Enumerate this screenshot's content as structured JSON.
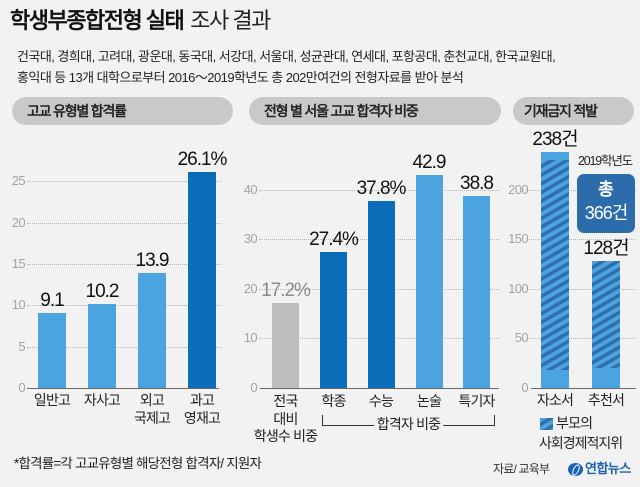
{
  "header": {
    "title_bold": "학생부종합전형 실태",
    "title_regular": "조사 결과",
    "subtitle_line1": "건국대, 경희대, 고려대, 광운대, 동국대, 서강대, 서울대, 성균관대, 연세대, 포항공대, 춘천교대, 한국교원대,",
    "subtitle_line2": "홍익대 등 13개 대학으로부터 2016～2019학년도 총 202만여건의 전형자료를 받아 분석"
  },
  "colors": {
    "background": "#f2f2f2",
    "pill": "#c9c9c9",
    "light_blue": "#4ba3df",
    "dark_blue": "#0b6cb8",
    "gray_bar": "#bdbdbf",
    "hatch_stripe": "#2f6fae",
    "total_box": "#2d6cab",
    "logo_blue": "#1b62b5"
  },
  "chart_data": [
    {
      "type": "bar",
      "title": "고교 유형별 합격률",
      "categories": [
        "일반고",
        "자사고",
        "외고\n국제고",
        "과고\n영재고"
      ],
      "values": [
        9.1,
        10.2,
        13.9,
        26.1
      ],
      "value_labels": [
        "9.1",
        "10.2",
        "13.9",
        "26.1%"
      ],
      "bar_colors": [
        "#4ba3df",
        "#4ba3df",
        "#4ba3df",
        "#0b6cb8"
      ],
      "ylim": [
        0,
        30
      ],
      "yticks": [
        0,
        5,
        10,
        15,
        20,
        25
      ],
      "grid": true
    },
    {
      "type": "bar",
      "title": "전형 별 서울 고교 합격자 비중",
      "categories": [
        "전국\n대비\n학생수 비중",
        "학종",
        "수능",
        "논술",
        "특기자"
      ],
      "values": [
        17.2,
        27.4,
        37.8,
        42.9,
        38.8
      ],
      "value_labels": [
        "17.2%",
        "27.4%",
        "37.8%",
        "42.9",
        "38.8"
      ],
      "label_colors": [
        "#8c8c8c",
        "#111111",
        "#111111",
        "#111111",
        "#111111"
      ],
      "bar_colors": [
        "#bdbdbf",
        "#0b6cb8",
        "#0b6cb8",
        "#4ba3df",
        "#4ba3df"
      ],
      "ylim": [
        0,
        50
      ],
      "yticks": [
        0,
        10,
        20,
        30,
        40
      ],
      "group_bracket": {
        "label": "합격자 비중"
      },
      "grid": true
    },
    {
      "type": "bar",
      "title": "기재금지 적발",
      "categories": [
        "자소서",
        "추천서"
      ],
      "values": [
        238,
        128
      ],
      "value_labels": [
        "238건",
        "128건"
      ],
      "bar_colors": [
        "#4ba3df",
        "#4ba3df"
      ],
      "hatch_ranges": [
        [
          18,
          230
        ],
        [
          20,
          128
        ]
      ],
      "ylim": [
        0,
        250
      ],
      "yticks": [
        0,
        50,
        100,
        150,
        200
      ],
      "annotation": {
        "year": "2019학년도",
        "total_line1": "총",
        "total_line2": "366건"
      },
      "legend": [
        {
          "label_line1": "부모의",
          "label_line2": "사회경제적지위"
        }
      ],
      "grid": true
    }
  ],
  "footnote": "*합격률=각 고교유형별 해당전형 합격자/ 지원자",
  "source": "자료/ 교육부",
  "logo": {
    "text": "연합뉴스"
  }
}
